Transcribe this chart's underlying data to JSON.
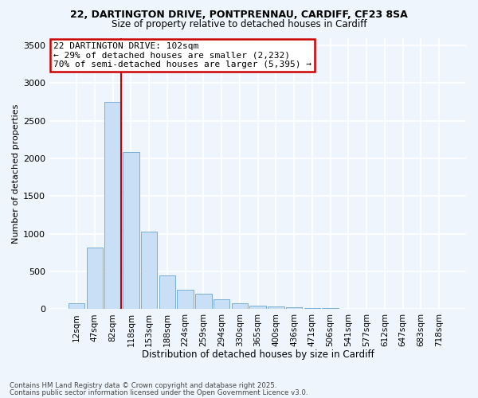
{
  "title1": "22, DARTINGTON DRIVE, PONTPRENNAU, CARDIFF, CF23 8SA",
  "title2": "Size of property relative to detached houses in Cardiff",
  "xlabel": "Distribution of detached houses by size in Cardiff",
  "ylabel": "Number of detached properties",
  "categories": [
    "12sqm",
    "47sqm",
    "82sqm",
    "118sqm",
    "153sqm",
    "188sqm",
    "224sqm",
    "259sqm",
    "294sqm",
    "330sqm",
    "365sqm",
    "400sqm",
    "436sqm",
    "471sqm",
    "506sqm",
    "541sqm",
    "577sqm",
    "612sqm",
    "647sqm",
    "683sqm",
    "718sqm"
  ],
  "values": [
    75,
    820,
    2750,
    2080,
    1030,
    450,
    255,
    200,
    130,
    75,
    50,
    35,
    25,
    15,
    10,
    7,
    5,
    3,
    2,
    1,
    1
  ],
  "bar_color": "#c8dff5",
  "bar_edgecolor": "#7baed4",
  "vline_color": "#cc0000",
  "annotation_text": "22 DARTINGTON DRIVE: 102sqm\n← 29% of detached houses are smaller (2,232)\n70% of semi-detached houses are larger (5,395) →",
  "annotation_box_color": "#ffffff",
  "annotation_box_edgecolor": "#cc0000",
  "ylim": [
    0,
    3600
  ],
  "yticks": [
    0,
    500,
    1000,
    1500,
    2000,
    2500,
    3000,
    3500
  ],
  "footer1": "Contains HM Land Registry data © Crown copyright and database right 2025.",
  "footer2": "Contains public sector information licensed under the Open Government Licence v3.0.",
  "bg_color": "#eef5fc",
  "grid_color": "#ffffff"
}
